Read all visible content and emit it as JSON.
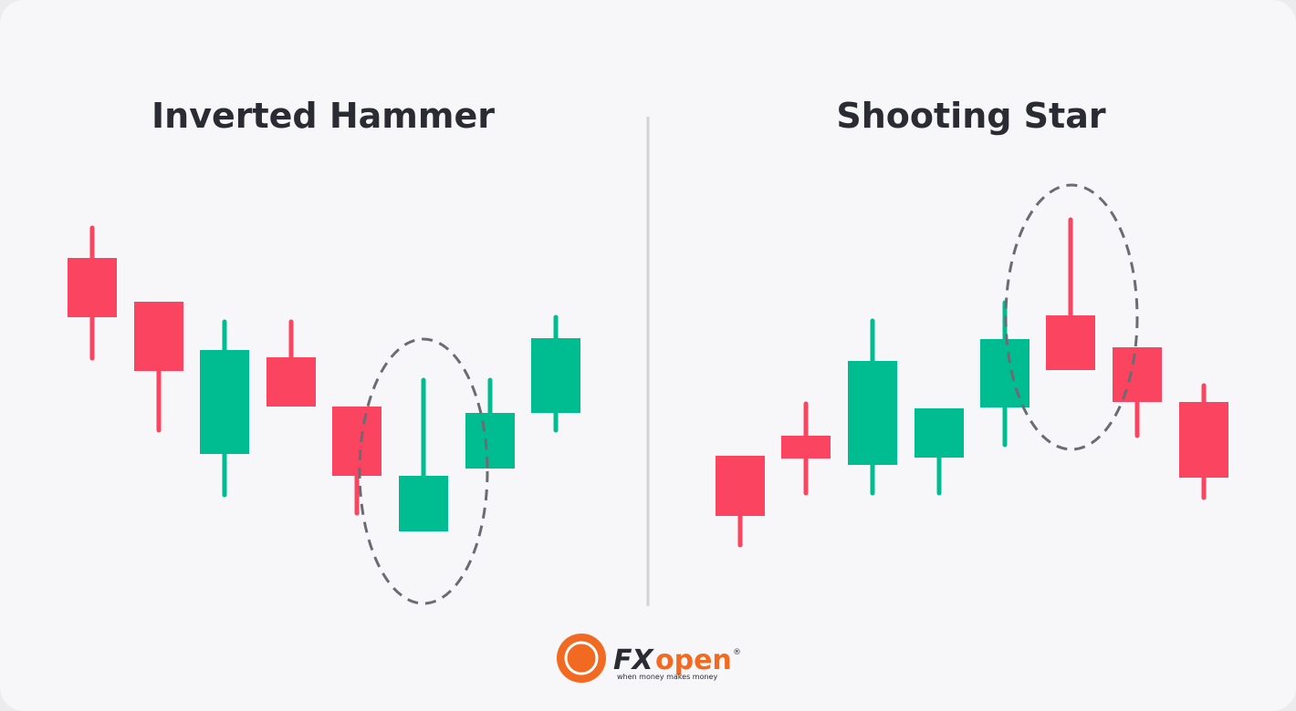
{
  "panels": [
    {
      "title": "Inverted Hammer"
    },
    {
      "title": "Shooting Star"
    }
  ],
  "logo": {
    "brand_fx": "FX",
    "brand_open": "open",
    "registered": "®",
    "tagline": "when money makes money"
  }
}
